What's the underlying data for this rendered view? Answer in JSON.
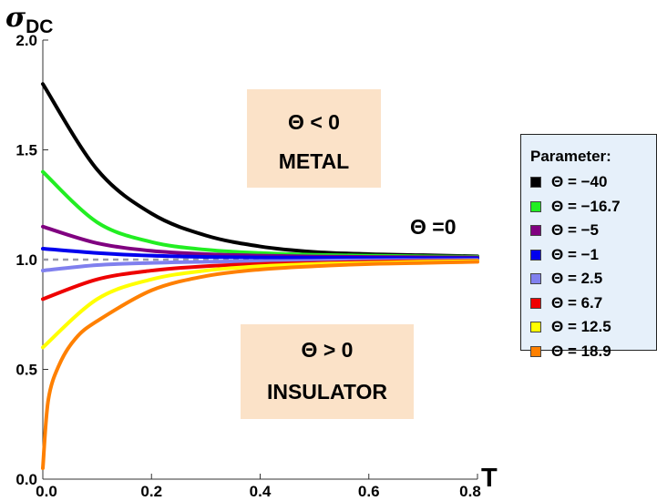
{
  "chart_data": {
    "type": "line",
    "ylabel_symbol": "σ",
    "ylabel_subscript": "DC",
    "xlabel": "T",
    "xlim": [
      0,
      0.8
    ],
    "ylim": [
      0,
      2.0
    ],
    "x_ticks": [
      "0.0",
      "0.2",
      "0.4",
      "0.6",
      "0.8"
    ],
    "y_ticks": [
      "0.0",
      "0.5",
      "1.0",
      "1.5",
      "2.0"
    ],
    "grid": false,
    "reference_line": {
      "y": 1.0,
      "style": "dashed",
      "color": "#9a9aa8"
    },
    "legend": {
      "title": "Parameter:",
      "placement": "right"
    },
    "series": [
      {
        "name": "Θ = −40",
        "color": "#000000",
        "x": [
          0,
          0.1,
          0.2,
          0.3,
          0.4,
          0.5,
          0.6,
          0.7,
          0.8
        ],
        "values": [
          1.8,
          1.41,
          1.21,
          1.11,
          1.06,
          1.035,
          1.025,
          1.02,
          1.015
        ]
      },
      {
        "name": "Θ = −16.7",
        "color": "#22ee22",
        "x": [
          0,
          0.1,
          0.2,
          0.3,
          0.4,
          0.5,
          0.6,
          0.7,
          0.8
        ],
        "values": [
          1.4,
          1.17,
          1.08,
          1.045,
          1.03,
          1.022,
          1.018,
          1.015,
          1.013
        ]
      },
      {
        "name": "Θ = −5",
        "color": "#800080",
        "x": [
          0,
          0.1,
          0.2,
          0.3,
          0.4,
          0.5,
          0.6,
          0.7,
          0.8
        ],
        "values": [
          1.15,
          1.075,
          1.04,
          1.025,
          1.018,
          1.014,
          1.012,
          1.011,
          1.01
        ]
      },
      {
        "name": "Θ = −1",
        "color": "#0000ee",
        "x": [
          0,
          0.1,
          0.2,
          0.3,
          0.4,
          0.5,
          0.6,
          0.7,
          0.8
        ],
        "values": [
          1.05,
          1.03,
          1.018,
          1.012,
          1.01,
          1.009,
          1.008,
          1.007,
          1.006
        ]
      },
      {
        "name": "Θ = 2.5",
        "color": "#8080ee",
        "x": [
          0,
          0.1,
          0.2,
          0.3,
          0.4,
          0.5,
          0.6,
          0.7,
          0.8
        ],
        "values": [
          0.95,
          0.975,
          0.985,
          0.99,
          0.993,
          0.995,
          0.997,
          0.998,
          0.999
        ]
      },
      {
        "name": "Θ = 6.7",
        "color": "#ee0000",
        "x": [
          0,
          0.1,
          0.2,
          0.3,
          0.4,
          0.5,
          0.6,
          0.7,
          0.8
        ],
        "values": [
          0.82,
          0.91,
          0.95,
          0.97,
          0.98,
          0.985,
          0.99,
          0.993,
          0.995
        ]
      },
      {
        "name": "Θ = 12.5",
        "color": "#ffff00",
        "x": [
          0,
          0.1,
          0.2,
          0.3,
          0.4,
          0.5,
          0.6,
          0.7,
          0.8
        ],
        "values": [
          0.6,
          0.82,
          0.91,
          0.95,
          0.97,
          0.98,
          0.985,
          0.99,
          0.993
        ]
      },
      {
        "name": "Θ = 18.9",
        "color": "#ff8000",
        "x": [
          0,
          0.01,
          0.03,
          0.06,
          0.1,
          0.2,
          0.3,
          0.4,
          0.5,
          0.6,
          0.7,
          0.8
        ],
        "values": [
          0.05,
          0.36,
          0.52,
          0.64,
          0.72,
          0.86,
          0.925,
          0.955,
          0.97,
          0.98,
          0.985,
          0.99
        ]
      }
    ],
    "annotations": [
      {
        "id": "metal",
        "lines": [
          "Θ < 0",
          "METAL"
        ],
        "background": "#fbe2c8"
      },
      {
        "id": "insulator",
        "lines": [
          "Θ > 0",
          "INSULATOR"
        ],
        "background": "#fbe2c8"
      },
      {
        "id": "zero",
        "text": "Θ =0"
      }
    ]
  }
}
